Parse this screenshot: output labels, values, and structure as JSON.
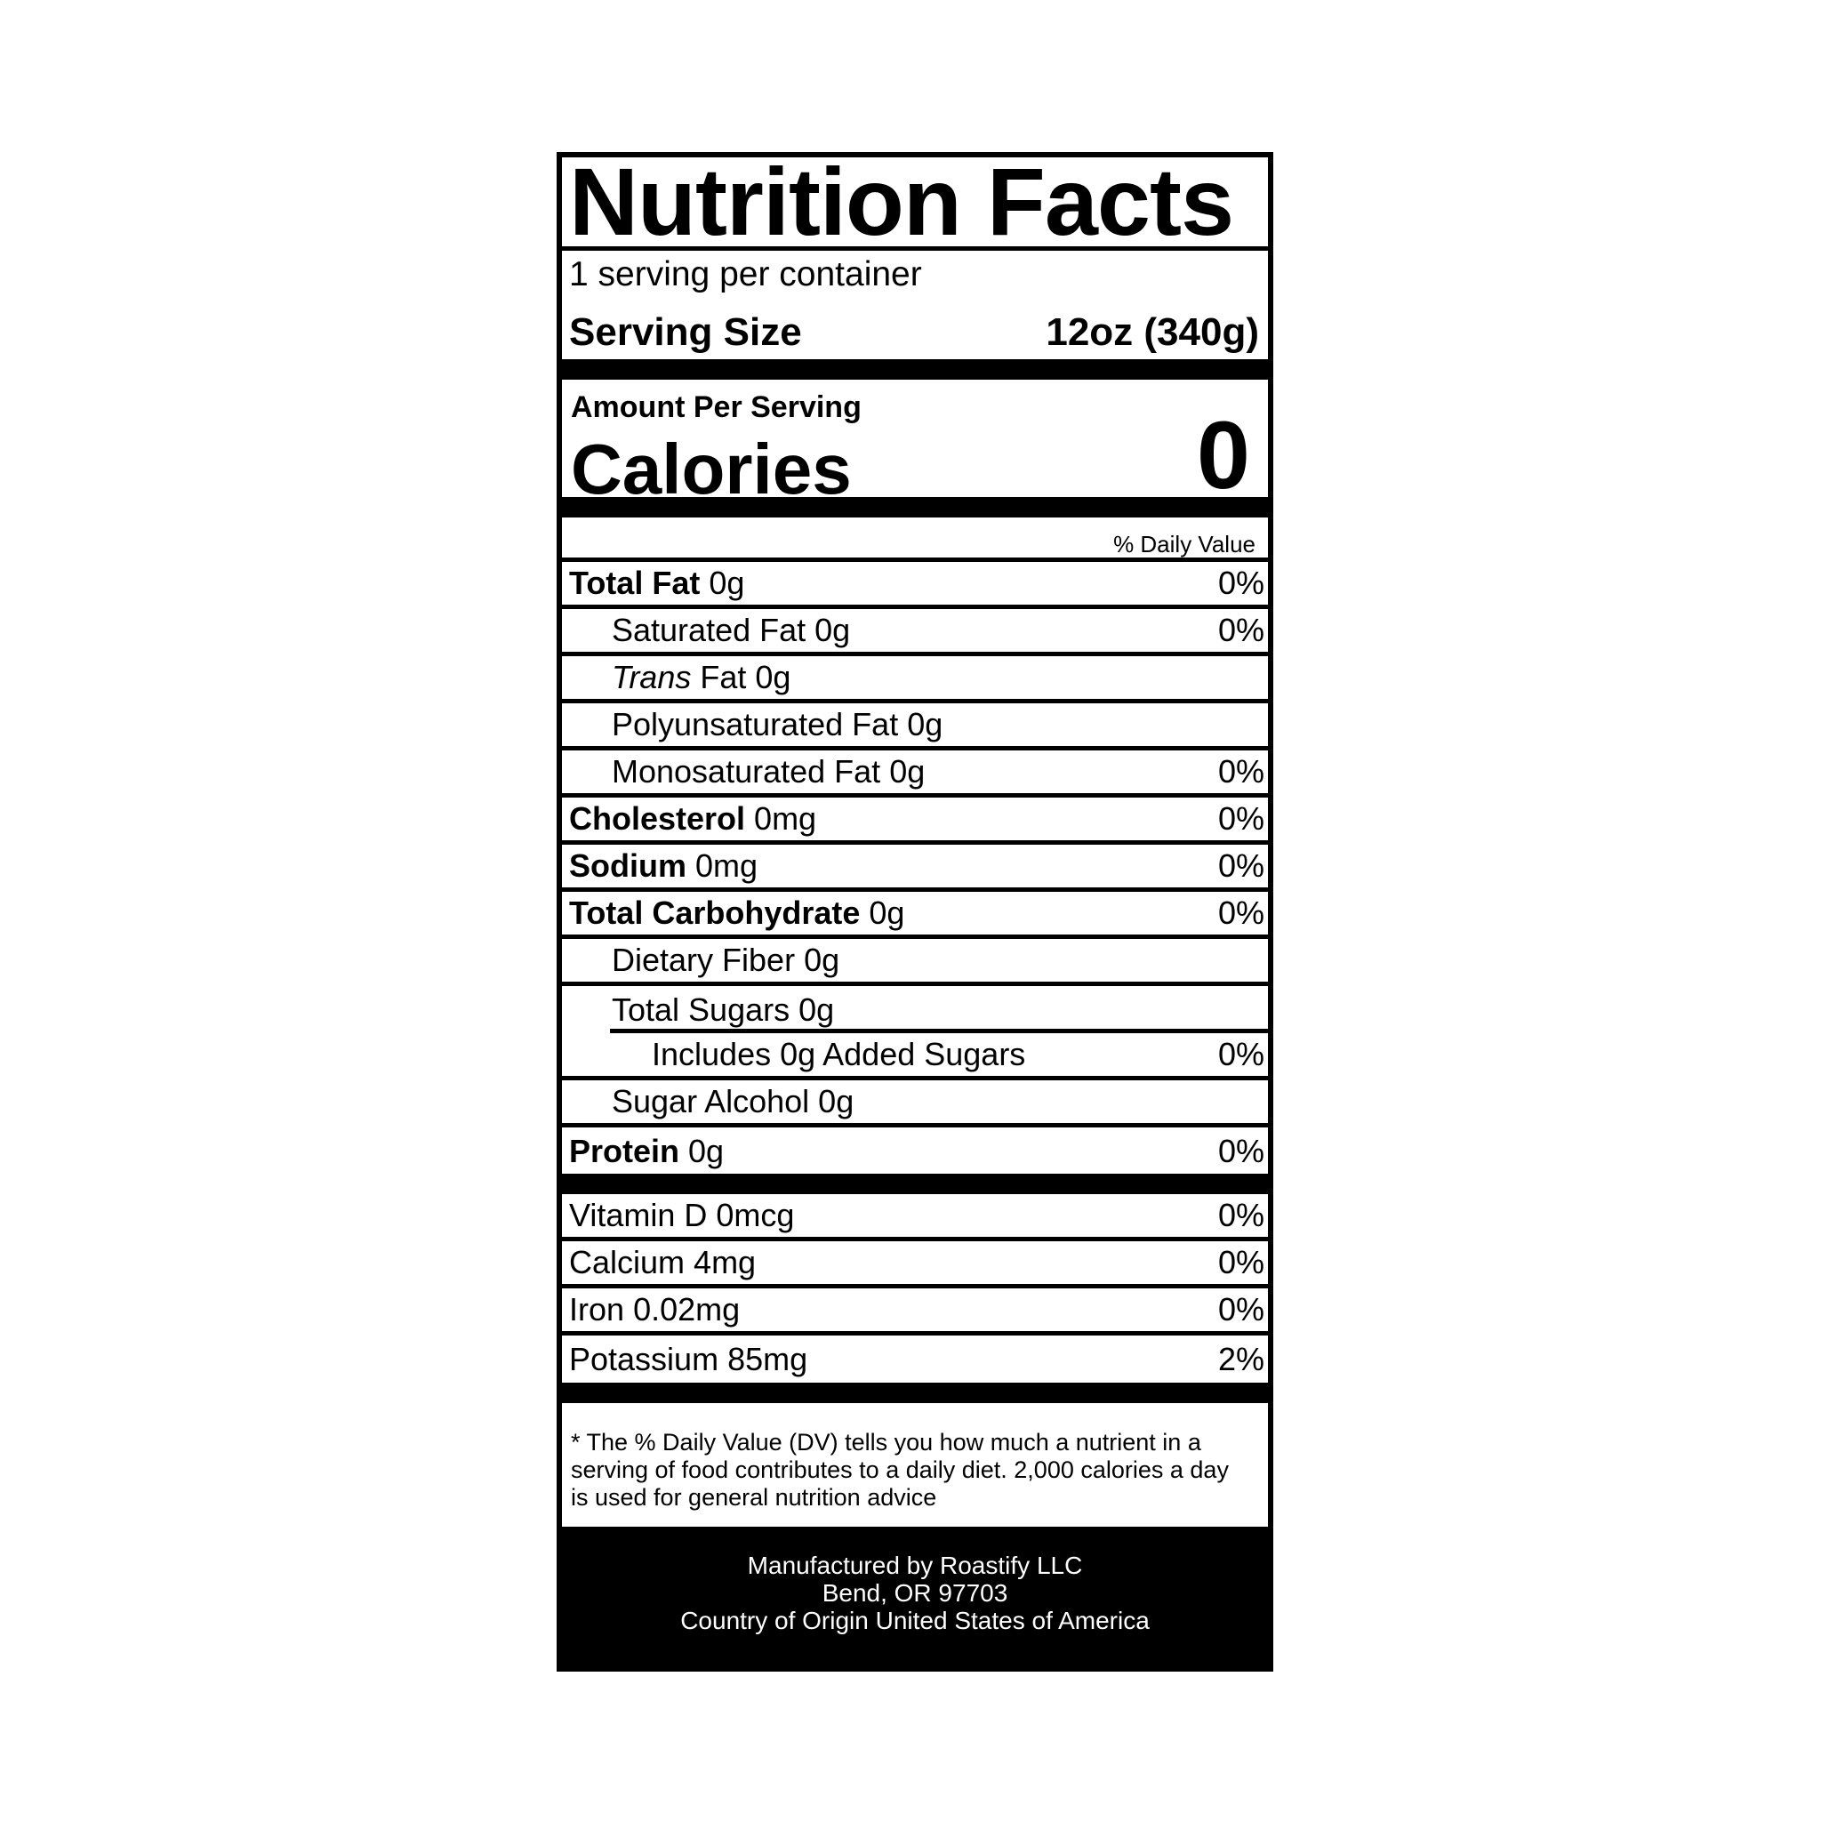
{
  "title": "Nutrition Facts",
  "servings_per_container": "1 serving per container",
  "serving_size": {
    "label": "Serving Size",
    "value": "12oz (340g)"
  },
  "amount_per_serving": "Amount Per Serving",
  "calories": {
    "label": "Calories",
    "value": "0"
  },
  "daily_value_header": "% Daily Value",
  "nutrients": [
    {
      "name": "Total Fat",
      "amount": "0g",
      "dv": "0%"
    },
    {
      "name": "Saturated Fat",
      "amount": "0g",
      "dv": "0%"
    },
    {
      "name": "Trans",
      "name_suffix": "Fat",
      "amount": "0g",
      "dv": ""
    },
    {
      "name": "Polyunsaturated Fat",
      "amount": "0g",
      "dv": ""
    },
    {
      "name": "Monosaturated Fat",
      "amount": "0g",
      "dv": "0%"
    },
    {
      "name": "Cholesterol",
      "amount": "0mg",
      "dv": "0%"
    },
    {
      "name": "Sodium",
      "amount": "0mg",
      "dv": "0%"
    },
    {
      "name": "Total Carbohydrate",
      "amount": "0g",
      "dv": "0%"
    },
    {
      "name": "Dietary Fiber",
      "amount": "0g",
      "dv": ""
    },
    {
      "name": "Total Sugars",
      "amount": "0g",
      "dv": ""
    },
    {
      "name": "Includes 0g Added Sugars",
      "amount": "",
      "dv": "0%"
    },
    {
      "name": "Sugar Alcohol",
      "amount": "0g",
      "dv": ""
    },
    {
      "name": "Protein",
      "amount": "0g",
      "dv": "0%"
    }
  ],
  "vitamins": [
    {
      "name": "Vitamin D",
      "amount": "0mcg",
      "dv": "0%"
    },
    {
      "name": "Calcium",
      "amount": "4mg",
      "dv": "0%"
    },
    {
      "name": "Iron",
      "amount": "0.02mg",
      "dv": "0%"
    },
    {
      "name": "Potassium",
      "amount": "85mg",
      "dv": "2%"
    }
  ],
  "footnote": "* The % Daily Value (DV) tells you how much a nutrient in a serving of food contributes to a daily diet. 2,000 calories a day is used for general nutrition advice",
  "manufacturer": {
    "line1": "Manufactured by Roastify LLC",
    "line2": "Bend, OR 97703",
    "line3": "Country of Origin United States of America"
  }
}
